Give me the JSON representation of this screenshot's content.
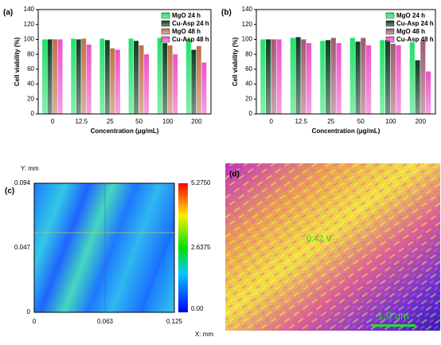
{
  "chart_data": [
    {
      "type": "bar",
      "panel_label": "(a)",
      "x_label": "Concentration (μg/mL)",
      "y_label": "Cell viability (%)",
      "categories": [
        "0",
        "12.5",
        "25",
        "50",
        "100",
        "200"
      ],
      "series": [
        {
          "name": "MgO 24 h",
          "color": "#22e06a",
          "values": [
            100,
            101,
            101,
            101,
            102,
            100
          ]
        },
        {
          "name": "Cu-Asp 24 h",
          "color": "#0b3d22",
          "values": [
            100,
            100,
            99,
            98,
            95,
            86
          ]
        },
        {
          "name": "MgO 48 h",
          "color": "#c0704a",
          "values": [
            100,
            101,
            88,
            92,
            92,
            91
          ]
        },
        {
          "name": "Cu-Asp 48 h",
          "color": "#f050c8",
          "values": [
            100,
            93,
            86,
            80,
            80,
            69
          ]
        }
      ],
      "ylim": [
        0,
        140
      ],
      "yticks": [
        0,
        20,
        40,
        60,
        80,
        100,
        120,
        140
      ],
      "legend": "upper right"
    },
    {
      "type": "bar",
      "panel_label": "(b)",
      "x_label": "Concentration (μg/mL)",
      "y_label": "Cell viability (%)",
      "categories": [
        "0",
        "12.5",
        "25",
        "50",
        "100",
        "200"
      ],
      "series": [
        {
          "name": "MgO 24 h",
          "color": "#22e06a",
          "values": [
            100,
            102,
            98,
            102,
            99,
            96
          ]
        },
        {
          "name": "Cu-Asp 24 h",
          "color": "#0b3d22",
          "values": [
            100,
            103,
            99,
            97,
            99,
            72
          ]
        },
        {
          "name": "MgO 48 h",
          "color": "#a05a70",
          "values": [
            100,
            100,
            102,
            102,
            94,
            98
          ]
        },
        {
          "name": "Cu-Asp 48 h",
          "color": "#f050c8",
          "values": [
            100,
            95,
            95,
            92,
            92,
            57
          ]
        }
      ],
      "ylim": [
        0,
        140
      ],
      "yticks": [
        0,
        20,
        40,
        60,
        80,
        100,
        120,
        140
      ],
      "legend": "upper right"
    }
  ],
  "map_panel": {
    "panel_label": "(c)",
    "y_label": "Y: mm",
    "x_label": "X: mm",
    "y_ticks": [
      "0.094",
      "0.047",
      "0"
    ],
    "x_ticks": [
      "0",
      "0.063",
      "0.125"
    ],
    "colorbar_ticks": [
      "5.2750",
      "2.6375",
      "0.00"
    ]
  },
  "image_panel": {
    "panel_label": "(d)",
    "annotation": "0.42 V",
    "scale_bar": "1.0 um"
  }
}
